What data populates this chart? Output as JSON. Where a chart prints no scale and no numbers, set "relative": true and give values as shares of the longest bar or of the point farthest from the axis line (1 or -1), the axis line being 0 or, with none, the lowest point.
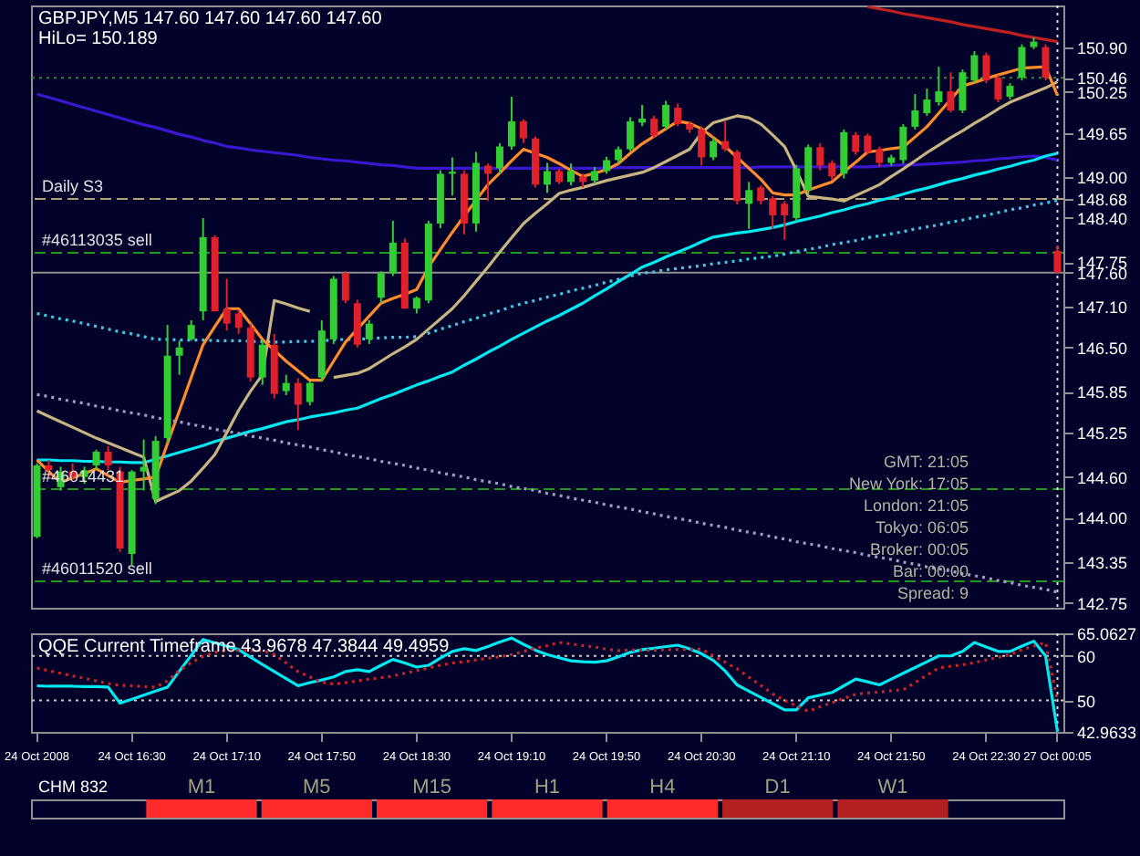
{
  "chart_data": [
    {
      "type": "candlestick",
      "title": "GBPJPY,M5 147.60 147.60 147.60 147.60",
      "subtitle": "HiLo= 150.189",
      "categories": [
        "24 Oct 2008",
        null,
        null,
        null,
        null,
        null,
        null,
        null,
        "24 Oct 16:30",
        null,
        null,
        null,
        null,
        null,
        null,
        null,
        "24 Oct 17:10",
        null,
        null,
        null,
        null,
        null,
        null,
        null,
        "24 Oct 17:50",
        null,
        null,
        null,
        null,
        null,
        null,
        null,
        "24 Oct 18:30",
        null,
        null,
        null,
        null,
        null,
        null,
        null,
        "24 Oct 19:10",
        null,
        null,
        null,
        null,
        null,
        null,
        null,
        "24 Oct 19:50",
        null,
        null,
        null,
        null,
        null,
        null,
        null,
        "24 Oct 20:30",
        null,
        null,
        null,
        null,
        null,
        null,
        null,
        "24 Oct 21:10",
        null,
        null,
        null,
        null,
        null,
        null,
        null,
        "24 Oct 21:50",
        null,
        null,
        null,
        null,
        null,
        null,
        null,
        "24 Oct 22:30",
        null,
        null,
        null,
        null,
        null,
        "27 Oct 00:05"
      ],
      "ohlc": [
        [
          143.72,
          144.8,
          143.7,
          144.77
        ],
        [
          144.77,
          144.85,
          144.6,
          144.7
        ],
        [
          144.45,
          144.75,
          144.4,
          144.68
        ],
        [
          144.68,
          144.8,
          144.55,
          144.6
        ],
        [
          144.6,
          144.75,
          144.5,
          144.7
        ],
        [
          144.77,
          145.0,
          144.7,
          144.97
        ],
        [
          144.97,
          145.05,
          144.7,
          144.77
        ],
        [
          144.68,
          144.75,
          143.5,
          143.55
        ],
        [
          143.47,
          144.7,
          143.31,
          144.68
        ],
        [
          144.68,
          145.15,
          144.4,
          144.75
        ],
        [
          144.28,
          145.2,
          144.2,
          145.13
        ],
        [
          145.17,
          146.83,
          145.1,
          146.38
        ],
        [
          146.38,
          146.6,
          146.1,
          146.5
        ],
        [
          146.62,
          146.9,
          146.6,
          146.83
        ],
        [
          147.03,
          148.4,
          146.9,
          148.12
        ],
        [
          148.12,
          148.15,
          147.03,
          147.03
        ],
        [
          147.07,
          147.51,
          146.75,
          146.85
        ],
        [
          147.0,
          147.05,
          146.7,
          146.79
        ],
        [
          146.79,
          146.85,
          146.0,
          146.06
        ],
        [
          146.06,
          146.6,
          145.95,
          146.54
        ],
        [
          146.54,
          146.7,
          145.75,
          145.82
        ],
        [
          145.86,
          146.1,
          145.8,
          145.98
        ],
        [
          145.98,
          146.05,
          145.29,
          145.66
        ],
        [
          145.7,
          146.0,
          145.65,
          145.98
        ],
        [
          146.06,
          146.9,
          146.0,
          146.75
        ],
        [
          146.62,
          147.55,
          146.55,
          147.51
        ],
        [
          147.59,
          147.62,
          147.15,
          147.19
        ],
        [
          147.15,
          147.2,
          146.5,
          146.54
        ],
        [
          146.62,
          146.9,
          146.55,
          146.85
        ],
        [
          147.23,
          147.62,
          147.15,
          147.59
        ],
        [
          147.59,
          148.36,
          147.55,
          148.04
        ],
        [
          148.04,
          148.1,
          147.07,
          147.07
        ],
        [
          147.07,
          147.25,
          147.0,
          147.23
        ],
        [
          147.19,
          148.36,
          147.15,
          148.32
        ],
        [
          148.32,
          149.1,
          148.25,
          149.05
        ],
        [
          149.05,
          149.29,
          148.73,
          149.08
        ],
        [
          149.05,
          149.1,
          148.16,
          148.32
        ],
        [
          148.32,
          149.37,
          148.2,
          149.21
        ],
        [
          149.17,
          149.2,
          148.65,
          149.05
        ],
        [
          149.13,
          149.5,
          149.05,
          149.45
        ],
        [
          149.45,
          150.18,
          149.4,
          149.82
        ],
        [
          149.82,
          149.85,
          149.5,
          149.57
        ],
        [
          149.57,
          149.6,
          148.85,
          148.89
        ],
        [
          148.89,
          149.21,
          148.77,
          149.09
        ],
        [
          149.09,
          149.12,
          148.9,
          148.93
        ],
        [
          148.93,
          149.2,
          148.88,
          149.09
        ],
        [
          149.01,
          149.05,
          148.85,
          148.93
        ],
        [
          148.95,
          149.15,
          148.9,
          149.09
        ],
        [
          149.09,
          149.3,
          149.05,
          149.25
        ],
        [
          149.25,
          149.45,
          149.2,
          149.41
        ],
        [
          149.41,
          149.88,
          149.38,
          149.82
        ],
        [
          149.8,
          150.06,
          149.75,
          149.86
        ],
        [
          149.86,
          149.9,
          149.58,
          149.61
        ],
        [
          149.74,
          150.12,
          149.7,
          150.06
        ],
        [
          150.02,
          150.08,
          149.75,
          149.78
        ],
        [
          149.78,
          149.82,
          149.65,
          149.7
        ],
        [
          149.7,
          149.75,
          149.17,
          149.29
        ],
        [
          149.29,
          149.58,
          149.25,
          149.53
        ],
        [
          149.53,
          149.82,
          149.38,
          149.41
        ],
        [
          149.37,
          149.4,
          148.6,
          148.65
        ],
        [
          148.61,
          148.93,
          148.24,
          148.81
        ],
        [
          148.85,
          148.88,
          148.6,
          148.65
        ],
        [
          148.69,
          148.72,
          148.24,
          148.44
        ],
        [
          148.61,
          148.65,
          148.08,
          148.44
        ],
        [
          148.4,
          149.18,
          148.35,
          149.13
        ],
        [
          148.81,
          149.48,
          148.75,
          149.44
        ],
        [
          149.44,
          149.5,
          149.1,
          149.17
        ],
        [
          149.21,
          149.25,
          148.95,
          149.01
        ],
        [
          149.05,
          149.7,
          148.98,
          149.66
        ],
        [
          149.62,
          149.66,
          149.33,
          149.37
        ],
        [
          149.61,
          149.64,
          149.33,
          149.37
        ],
        [
          149.41,
          149.45,
          149.15,
          149.21
        ],
        [
          149.21,
          149.33,
          149.17,
          149.29
        ],
        [
          149.25,
          149.78,
          149.2,
          149.74
        ],
        [
          149.74,
          150.22,
          149.7,
          149.98
        ],
        [
          149.94,
          150.3,
          149.9,
          150.14
        ],
        [
          150.1,
          150.62,
          150.05,
          150.26
        ],
        [
          150.26,
          150.54,
          149.95,
          149.98
        ],
        [
          149.98,
          150.58,
          149.94,
          150.54
        ],
        [
          150.42,
          150.85,
          150.38,
          150.79
        ],
        [
          150.79,
          150.83,
          150.38,
          150.42
        ],
        [
          150.46,
          150.5,
          150.1,
          150.14
        ],
        [
          150.18,
          150.38,
          150.14,
          150.34
        ],
        [
          150.46,
          150.95,
          150.42,
          150.91
        ],
        [
          150.91,
          151.05,
          150.88,
          150.99
        ],
        [
          150.91,
          150.95,
          150.42,
          150.46
        ],
        [
          147.92,
          148.0,
          147.6,
          147.6
        ]
      ],
      "colors": [
        "#32cd32",
        "#e0202a",
        "#32cd32",
        "#e0202a",
        "#32cd32",
        "#32cd32",
        "#e0202a",
        "#e0202a",
        "#32cd32",
        "#32cd32",
        "#32cd32",
        "#32cd32",
        "#32cd32",
        "#32cd32",
        "#32cd32",
        "#e0202a",
        "#e0202a",
        "#e0202a",
        "#e0202a",
        "#32cd32",
        "#e0202a",
        "#32cd32",
        "#e0202a",
        "#32cd32",
        "#32cd32",
        "#32cd32",
        "#e0202a",
        "#e0202a",
        "#32cd32",
        "#32cd32",
        "#32cd32",
        "#e0202a",
        "#32cd32",
        "#32cd32",
        "#32cd32",
        "#32cd32",
        "#e0202a",
        "#32cd32",
        "#e0202a",
        "#32cd32",
        "#32cd32",
        "#e0202a",
        "#e0202a",
        "#32cd32",
        "#e0202a",
        "#32cd32",
        "#e0202a",
        "#32cd32",
        "#32cd32",
        "#32cd32",
        "#32cd32",
        "#32cd32",
        "#e0202a",
        "#32cd32",
        "#e0202a",
        "#e0202a",
        "#e0202a",
        "#32cd32",
        "#e0202a",
        "#e0202a",
        "#32cd32",
        "#e0202a",
        "#e0202a",
        "#e0202a",
        "#32cd32",
        "#32cd32",
        "#e0202a",
        "#e0202a",
        "#32cd32",
        "#e0202a",
        "#e0202a",
        "#e0202a",
        "#32cd32",
        "#32cd32",
        "#32cd32",
        "#32cd32",
        "#32cd32",
        "#e0202a",
        "#32cd32",
        "#32cd32",
        "#e0202a",
        "#e0202a",
        "#32cd32",
        "#32cd32",
        "#32cd32",
        "#e0202a",
        "#e0202a"
      ],
      "series": [
        {
          "type": "line",
          "color": "#3a18d0",
          "values": [
            150.22,
            150.17,
            150.12,
            150.07,
            150.02,
            149.97,
            149.92,
            149.87,
            149.82,
            149.77,
            149.73,
            149.68,
            149.63,
            149.59,
            149.54,
            149.5,
            149.45,
            149.43,
            149.4,
            149.38,
            149.36,
            149.34,
            149.32,
            149.29,
            149.27,
            149.25,
            149.24,
            149.22,
            149.2,
            149.18,
            149.17,
            149.15,
            149.13,
            149.13,
            149.13,
            149.13,
            149.13,
            149.13,
            149.13,
            149.13,
            149.13,
            149.13,
            149.13,
            149.13,
            149.13,
            149.13,
            149.13,
            149.13,
            149.13,
            149.14,
            149.14,
            149.14,
            149.14,
            149.14,
            149.14,
            149.14,
            149.14,
            149.14,
            149.14,
            149.14,
            149.14,
            149.15,
            149.15,
            149.15,
            149.15,
            149.15,
            149.15,
            149.15,
            149.15,
            149.15,
            149.15,
            149.16,
            149.17,
            149.18,
            149.18,
            149.19,
            149.2,
            149.21,
            149.22,
            149.24,
            149.25,
            149.27,
            149.28,
            149.3,
            149.31,
            149.29,
            149.25
          ]
        },
        {
          "type": "line",
          "color": "#00e8f0",
          "values": [
            144.85,
            144.85,
            144.84,
            144.84,
            144.83,
            144.83,
            144.82,
            144.82,
            144.81,
            144.81,
            144.86,
            144.91,
            144.96,
            145.01,
            145.06,
            145.12,
            145.17,
            145.22,
            145.27,
            145.31,
            145.36,
            145.41,
            145.44,
            145.48,
            145.51,
            145.54,
            145.58,
            145.61,
            145.68,
            145.75,
            145.81,
            145.88,
            145.95,
            146.01,
            146.08,
            146.14,
            146.24,
            146.33,
            146.43,
            146.52,
            146.62,
            146.71,
            146.8,
            146.89,
            146.97,
            147.06,
            147.15,
            147.26,
            147.36,
            147.47,
            147.57,
            147.68,
            147.75,
            147.83,
            147.9,
            147.97,
            148.05,
            148.12,
            148.15,
            148.18,
            148.2,
            148.23,
            148.26,
            148.3,
            148.35,
            148.39,
            148.43,
            148.48,
            148.52,
            148.57,
            148.61,
            148.66,
            148.7,
            148.75,
            148.8,
            148.84,
            148.89,
            148.94,
            148.98,
            149.03,
            149.07,
            149.12,
            149.16,
            149.21,
            149.25,
            149.31,
            149.35
          ]
        },
        {
          "type": "line",
          "color": "#40c8e0",
          "line_style": "dotted",
          "values": [
            147.0,
            146.96,
            146.92,
            146.89,
            146.85,
            146.81,
            146.77,
            146.73,
            146.7,
            146.66,
            146.62,
            146.62,
            146.61,
            146.61,
            146.61,
            146.6,
            146.6,
            146.6,
            146.59,
            146.59,
            146.58,
            146.58,
            146.59,
            146.59,
            146.6,
            146.61,
            146.62,
            146.62,
            146.63,
            146.64,
            146.65,
            146.65,
            146.66,
            146.71,
            146.77,
            146.82,
            146.88,
            146.93,
            146.99,
            147.04,
            147.1,
            147.15,
            147.19,
            147.24,
            147.28,
            147.33,
            147.37,
            147.41,
            147.46,
            147.5,
            147.55,
            147.59,
            147.61,
            147.64,
            147.66,
            147.68,
            147.7,
            147.73,
            147.75,
            147.77,
            147.8,
            147.82,
            147.84,
            147.87,
            147.91,
            147.94,
            147.97,
            148.01,
            148.04,
            148.07,
            148.11,
            148.14,
            148.17,
            148.2,
            148.24,
            148.27,
            148.3,
            148.34,
            148.37,
            148.41,
            148.44,
            148.48,
            148.52,
            148.55,
            148.59,
            148.62,
            148.66
          ]
        },
        {
          "type": "line",
          "color": "#c8b480",
          "values": [
            145.57,
            145.49,
            145.41,
            145.33,
            145.25,
            145.17,
            145.1,
            145.03,
            144.96,
            144.89,
            144.24,
            144.32,
            144.4,
            144.54,
            144.73,
            144.93,
            145.25,
            145.58,
            145.86,
            146.1,
            147.19,
            147.14,
            147.08,
            147.03,
            null,
            146.06,
            146.09,
            146.12,
            146.19,
            146.3,
            146.41,
            146.51,
            146.62,
            146.77,
            146.92,
            147.07,
            147.26,
            147.47,
            147.68,
            147.9,
            148.11,
            148.32,
            148.47,
            148.61,
            148.76,
            148.81,
            148.85,
            148.9,
            148.95,
            148.99,
            149.03,
            149.07,
            149.14,
            149.23,
            149.32,
            149.41,
            149.65,
            149.8,
            149.85,
            149.9,
            149.87,
            149.78,
            149.62,
            149.45,
            149.1,
            148.72,
            148.7,
            148.68,
            148.65,
            148.73,
            148.81,
            148.89,
            149.01,
            149.12,
            149.24,
            149.36,
            149.47,
            149.58,
            149.68,
            149.79,
            149.89,
            150.0,
            150.1,
            150.17,
            150.24,
            150.31,
            150.4
          ]
        },
        {
          "type": "line",
          "color": "#ff8c2a",
          "values": [
            144.85,
            144.68,
            144.52,
            144.59,
            144.65,
            144.72,
            144.62,
            144.52,
            144.55,
            144.57,
            144.6,
            145.09,
            145.57,
            146.06,
            146.54,
            146.81,
            147.07,
            147.07,
            146.85,
            146.62,
            146.46,
            146.3,
            146.16,
            146.02,
            146.02,
            146.3,
            146.58,
            146.77,
            146.96,
            147.15,
            147.22,
            147.28,
            147.35,
            147.68,
            147.94,
            148.19,
            148.43,
            148.66,
            148.89,
            149.06,
            149.24,
            149.41,
            149.35,
            149.29,
            149.2,
            149.1,
            149.01,
            149.06,
            149.11,
            149.2,
            149.35,
            149.49,
            149.6,
            149.71,
            149.82,
            149.79,
            149.71,
            149.58,
            149.45,
            149.29,
            149.13,
            148.97,
            148.77,
            148.74,
            148.74,
            148.81,
            148.87,
            148.93,
            149.08,
            149.22,
            149.37,
            149.39,
            149.42,
            149.44,
            149.59,
            149.74,
            149.94,
            150.14,
            150.34,
            150.39,
            150.45,
            150.5,
            150.55,
            150.6,
            150.61,
            150.62,
            150.2
          ]
        },
        {
          "type": "line",
          "color": "#a0a0c0",
          "line_style": "dotted",
          "values": [
            145.81,
            145.78,
            145.74,
            145.71,
            145.68,
            145.64,
            145.61,
            145.57,
            145.54,
            145.51,
            145.47,
            145.44,
            145.41,
            145.37,
            145.34,
            145.3,
            145.27,
            145.24,
            145.2,
            145.17,
            145.14,
            145.1,
            145.07,
            145.04,
            145.0,
            144.97,
            144.93,
            144.9,
            144.87,
            144.83,
            144.8,
            144.77,
            144.73,
            144.7,
            144.66,
            144.63,
            144.6,
            144.56,
            144.53,
            144.5,
            144.46,
            144.43,
            144.4,
            144.36,
            144.33,
            144.29,
            144.26,
            144.23,
            144.19,
            144.16,
            144.13,
            144.09,
            144.06,
            144.02,
            143.99,
            143.96,
            143.92,
            143.89,
            143.86,
            143.82,
            143.79,
            143.76,
            143.72,
            143.69,
            143.65,
            143.62,
            143.59,
            143.55,
            143.52,
            143.49,
            143.45,
            143.42,
            143.39,
            143.35,
            143.32,
            143.28,
            143.25,
            143.22,
            143.18,
            143.15,
            143.12,
            143.08,
            143.05,
            143.01,
            142.98,
            142.95,
            142.91
          ]
        },
        {
          "type": "line",
          "color": "#c02020",
          "values": [
            null,
            null,
            null,
            null,
            null,
            null,
            null,
            null,
            null,
            null,
            null,
            null,
            null,
            null,
            null,
            null,
            null,
            null,
            null,
            null,
            null,
            null,
            null,
            null,
            null,
            null,
            null,
            null,
            null,
            null,
            null,
            null,
            null,
            null,
            null,
            null,
            null,
            null,
            null,
            null,
            null,
            null,
            null,
            null,
            null,
            null,
            null,
            null,
            null,
            null,
            null,
            null,
            null,
            null,
            null,
            null,
            null,
            null,
            null,
            null,
            null,
            null,
            null,
            null,
            null,
            null,
            null,
            null,
            null,
            null,
            151.5,
            151.47,
            151.44,
            151.4,
            151.37,
            151.34,
            151.31,
            151.28,
            151.24,
            151.21,
            151.18,
            151.15,
            151.12,
            151.08,
            151.05,
            151.02,
            150.99
          ]
        }
      ],
      "ref_lines": [
        {
          "axis": "y",
          "value": 150.46,
          "color": "#1e9a1e",
          "line_style": "dotted"
        },
        {
          "axis": "y",
          "value": 148.68,
          "color": "#b4a070",
          "line_style": "dashed",
          "label": "Daily S3"
        },
        {
          "axis": "y",
          "value": 147.89,
          "color": "#1e9a1e",
          "line_style": "dashed",
          "label": "#46113035 sell"
        },
        {
          "axis": "y",
          "value": 147.6,
          "color": "#909090",
          "line_style": "solid"
        },
        {
          "axis": "y",
          "value": 144.42,
          "color": "#1e9a1e",
          "line_style": "dashed"
        },
        {
          "axis": "y",
          "value": 143.07,
          "color": "#1e9a1e",
          "line_style": "dashed",
          "label": "#46011520 sell"
        },
        {
          "axis": "x",
          "value": "27 Oct 00:05",
          "color": "#e0e0e0",
          "line_style": "dotted"
        }
      ],
      "annotations": [
        {
          "text": "#46014431",
          "y": 144.42
        },
        "GMT: 21:05",
        "New York: 17:05",
        "London: 21:05",
        "Tokyo: 06:05",
        "Broker: 00:05",
        "Bar: 00:00",
        "Spread: 9"
      ],
      "ylim": [
        142.68,
        151.52
      ],
      "yticks": [
        {
          "value": 150.9,
          "label": "150.90"
        },
        {
          "value": 150.46,
          "label": "150.46"
        },
        {
          "value": 150.25,
          "label": "150.25"
        },
        {
          "value": 149.65,
          "label": "149.65"
        },
        {
          "value": 149,
          "label": "149.00"
        },
        {
          "value": 148.68,
          "label": "148.68"
        },
        {
          "value": 148.4,
          "label": "148.40"
        },
        {
          "value": 147.75,
          "label": "147.75"
        },
        {
          "value": 147.6,
          "label": "147.60"
        },
        {
          "value": 147.1,
          "label": "147.10"
        },
        {
          "value": 146.5,
          "label": "146.50"
        },
        {
          "value": 145.85,
          "label": "145.85"
        },
        {
          "value": 145.25,
          "label": "145.25"
        },
        {
          "value": 144.6,
          "label": "144.60"
        },
        {
          "value": 144,
          "label": "144.00"
        },
        {
          "value": 143.35,
          "label": "143.35"
        },
        {
          "value": 142.75,
          "label": "142.75"
        }
      ],
      "tick_labels": "y"
    },
    {
      "type": "line",
      "title": "QQE Current Timeframe 43.9678 47.3844 49.4959",
      "categories": [
        "24 Oct 2008",
        null,
        null,
        null,
        null,
        null,
        null,
        null,
        "24 Oct 16:30",
        null,
        null,
        null,
        null,
        null,
        null,
        null,
        "24 Oct 17:10",
        null,
        null,
        null,
        null,
        null,
        null,
        null,
        "24 Oct 17:50",
        null,
        null,
        null,
        null,
        null,
        null,
        null,
        "24 Oct 18:30",
        null,
        null,
        null,
        null,
        null,
        null,
        null,
        "24 Oct 19:10",
        null,
        null,
        null,
        null,
        null,
        null,
        null,
        "24 Oct 19:50",
        null,
        null,
        null,
        null,
        null,
        null,
        null,
        "24 Oct 20:30",
        null,
        null,
        null,
        null,
        null,
        null,
        null,
        "24 Oct 21:10",
        null,
        null,
        null,
        null,
        null,
        null,
        null,
        "24 Oct 21:50",
        null,
        null,
        null,
        null,
        null,
        null,
        null,
        "24 Oct 22:30",
        null,
        null,
        null,
        null,
        null,
        "27 Oct 00:05"
      ],
      "series": [
        {
          "color": "#00e8f0",
          "values": [
            53.3,
            53.2,
            53.2,
            53.2,
            53.1,
            53.1,
            53.0,
            49.4,
            50.3,
            51.2,
            52.1,
            53.0,
            56.6,
            60.1,
            63.7,
            62.9,
            62.2,
            61.4,
            59.7,
            58.1,
            56.5,
            54.9,
            53.3,
            54.0,
            54.6,
            55.3,
            56.5,
            56.9,
            56.5,
            57.9,
            59.2,
            58.4,
            57.5,
            57.9,
            59.5,
            61.0,
            61.6,
            61.2,
            62.1,
            63.1,
            64.0,
            62.6,
            61.3,
            60.3,
            59.6,
            58.9,
            58.7,
            58.6,
            58.9,
            59.8,
            60.8,
            61.4,
            61.7,
            62.1,
            62.4,
            61.6,
            60.5,
            59.0,
            56.6,
            53.5,
            52.1,
            50.7,
            49.3,
            47.9,
            47.9,
            50.6,
            51.2,
            51.8,
            53.3,
            54.8,
            54.2,
            53.5,
            54.8,
            56.1,
            57.4,
            58.7,
            60.0,
            60.0,
            61.0,
            63.0,
            62.0,
            61.0,
            61.0,
            62.2,
            63.3,
            60.0,
            43.0
          ]
        },
        {
          "color": "#cc2222",
          "line_style": "dotted",
          "values": [
            57.3,
            56.7,
            56.1,
            55.5,
            55.0,
            54.4,
            53.8,
            53.4,
            53.3,
            53.1,
            53.0,
            54.4,
            56.7,
            58.5,
            59.9,
            60.8,
            61.2,
            61.2,
            61.2,
            61.2,
            60.3,
            58.4,
            56.5,
            55.3,
            54.1,
            53.7,
            54.0,
            54.4,
            54.8,
            55.1,
            55.5,
            56.1,
            56.7,
            57.3,
            57.9,
            58.4,
            58.7,
            59.1,
            59.5,
            59.8,
            60.3,
            61.0,
            61.7,
            62.3,
            63.0,
            62.7,
            62.3,
            62.0,
            61.5,
            61.2,
            61.3,
            61.3,
            61.3,
            61.4,
            61.4,
            61.5,
            61.5,
            60.0,
            58.6,
            57.1,
            55.2,
            53.4,
            51.5,
            50.0,
            48.8,
            47.6,
            48.6,
            49.5,
            50.5,
            51.4,
            51.7,
            51.9,
            52.2,
            52.4,
            54.0,
            55.7,
            57.3,
            57.7,
            58.0,
            58.5,
            59.1,
            59.7,
            60.3,
            61.4,
            62.2,
            63.0,
            50.0
          ]
        }
      ],
      "ref_lines": [
        {
          "axis": "y",
          "value": 60,
          "color": "#d8d0a0",
          "line_style": "dotted"
        },
        {
          "axis": "y",
          "value": 50,
          "color": "#d8d0a0",
          "line_style": "dotted"
        },
        {
          "axis": "x",
          "value": "27 Oct 00:05",
          "color": "#e0e0e0",
          "line_style": "dotted"
        }
      ],
      "ylim": [
        42.9633,
        65.0627
      ],
      "yticks": [
        42.9633,
        50,
        60,
        65.0627
      ]
    },
    {
      "type": "bar",
      "title": "CHM 832",
      "categories": [
        "M1",
        "M5",
        "M15",
        "H1",
        "H4",
        "D1",
        "W1"
      ],
      "values": [
        1,
        1,
        1,
        1,
        1,
        1,
        1
      ],
      "relative": true,
      "colors": [
        "#ff2a2a",
        "#ff2a2a",
        "#ff2a2a",
        "#ff2a2a",
        "#ff2a2a",
        "#b42020",
        "#b42020"
      ]
    }
  ]
}
